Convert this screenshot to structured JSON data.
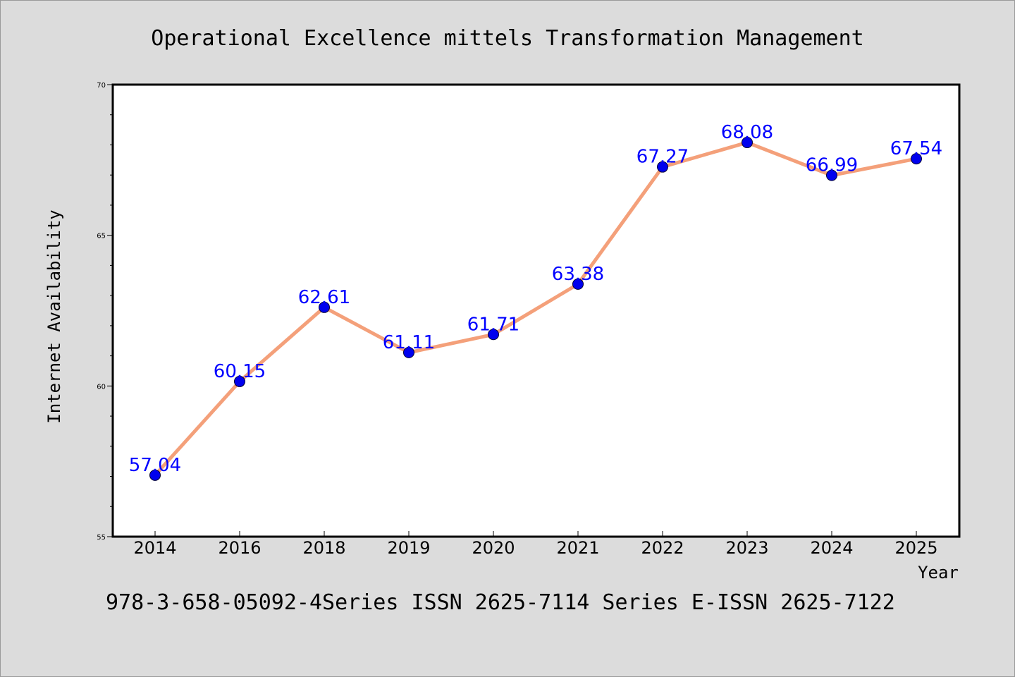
{
  "chart_data": {
    "type": "line",
    "title": "Operational Excellence mittels Transformation Management",
    "xlabel": "Year",
    "ylabel": "Internet Availability",
    "categories": [
      "2014",
      "2016",
      "2018",
      "2019",
      "2020",
      "2021",
      "2022",
      "2023",
      "2024",
      "2025"
    ],
    "series": [
      {
        "values": [
          57.04,
          60.15,
          62.61,
          61.11,
          61.71,
          63.38,
          67.27,
          68.08,
          66.99,
          67.54
        ],
        "data_labels": [
          "57.04",
          "60.15",
          "62.61",
          "61.11",
          "61.71",
          "63.38",
          "67.27",
          "68.08",
          "66.99",
          "67.54"
        ]
      }
    ],
    "ylim": [
      55,
      70
    ],
    "yticks": [
      "55",
      "60",
      "65",
      "70"
    ],
    "grid": false,
    "legend": "none",
    "colors": {
      "line": "#f4a07a",
      "marker": "#0000ee",
      "label": "#0000ff",
      "plot_background": "#ffffff",
      "page_background": "#dcdcdc"
    }
  },
  "footer": "978-3-658-05092-4Series ISSN 2625-7114 Series E-ISSN 2625-7122"
}
